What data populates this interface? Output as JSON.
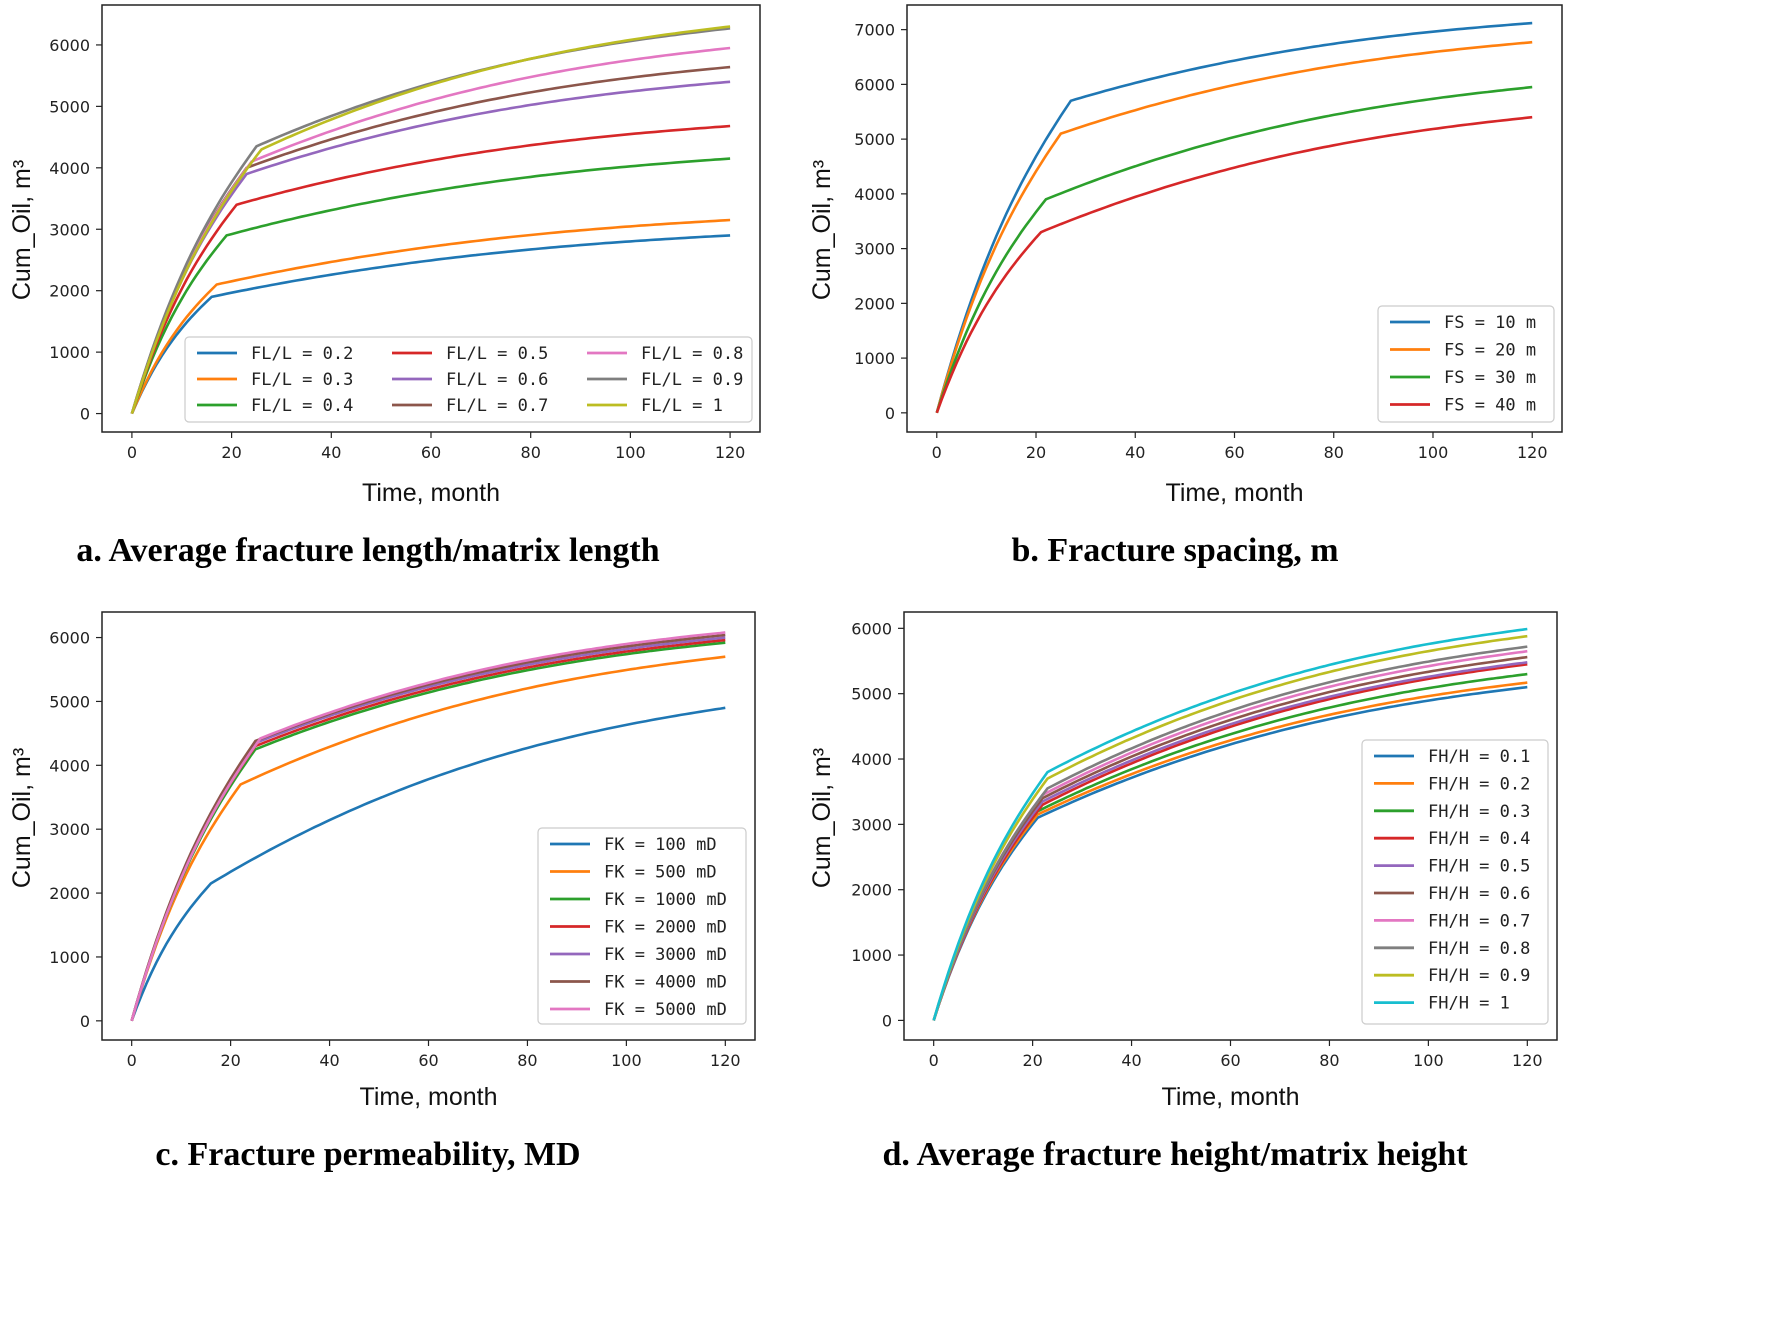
{
  "chart_data": [
    {
      "id": "a",
      "type": "line",
      "caption": "a. Average fracture length/matrix length",
      "xlabel": "Time, month",
      "ylabel": "Cum_Oil, m³",
      "xlim": [
        -6,
        126
      ],
      "ylim": [
        -300,
        6650
      ],
      "xticks": [
        0,
        20,
        40,
        60,
        80,
        100,
        120
      ],
      "yticks": [
        0,
        1000,
        2000,
        3000,
        4000,
        5000,
        6000
      ],
      "legend_position": "lower-right",
      "legend_columns": 3,
      "series": [
        {
          "name": "FL/L = 0.2",
          "color": "#1f77b4",
          "knee": 16,
          "knee_value": 1900,
          "final": 2900
        },
        {
          "name": "FL/L = 0.3",
          "color": "#ff7f0e",
          "knee": 17,
          "knee_value": 2100,
          "final": 3150
        },
        {
          "name": "FL/L = 0.4",
          "color": "#2ca02c",
          "knee": 19,
          "knee_value": 2900,
          "final": 4150
        },
        {
          "name": "FL/L = 0.5",
          "color": "#d62728",
          "knee": 21,
          "knee_value": 3400,
          "final": 4680
        },
        {
          "name": "FL/L = 0.6",
          "color": "#9467bd",
          "knee": 23,
          "knee_value": 3900,
          "final": 5400
        },
        {
          "name": "FL/L = 0.7",
          "color": "#8c564b",
          "knee": 23,
          "knee_value": 4000,
          "final": 5640
        },
        {
          "name": "FL/L = 0.8",
          "color": "#e377c2",
          "knee": 24,
          "knee_value": 4100,
          "final": 5950
        },
        {
          "name": "FL/L = 0.9",
          "color": "#7f7f7f",
          "knee": 25,
          "knee_value": 4350,
          "final": 6270
        },
        {
          "name": "FL/L = 1",
          "color": "#bcbd22",
          "knee": 26,
          "knee_value": 4300,
          "final": 6300
        }
      ]
    },
    {
      "id": "b",
      "type": "line",
      "caption": "b. Fracture spacing, m",
      "xlabel": "Time, month",
      "ylabel": "Cum_Oil, m³",
      "xlim": [
        -6,
        126
      ],
      "ylim": [
        -350,
        7450
      ],
      "xticks": [
        0,
        20,
        40,
        60,
        80,
        100,
        120
      ],
      "yticks": [
        0,
        1000,
        2000,
        3000,
        4000,
        5000,
        6000,
        7000
      ],
      "legend_position": "lower-right",
      "legend_columns": 1,
      "series": [
        {
          "name": "FS = 10 m",
          "color": "#1f77b4",
          "knee": 27,
          "knee_value": 5700,
          "final": 7120
        },
        {
          "name": "FS = 20 m",
          "color": "#ff7f0e",
          "knee": 25,
          "knee_value": 5100,
          "final": 6770
        },
        {
          "name": "FS = 30 m",
          "color": "#2ca02c",
          "knee": 22,
          "knee_value": 3900,
          "final": 5950
        },
        {
          "name": "FS = 40 m",
          "color": "#d62728",
          "knee": 21,
          "knee_value": 3300,
          "final": 5400
        }
      ]
    },
    {
      "id": "c",
      "type": "line",
      "caption": "c. Fracture permeability, MD",
      "xlabel": "Time, month",
      "ylabel": "Cum_Oil, m³",
      "xlim": [
        -6,
        126
      ],
      "ylim": [
        -300,
        6400
      ],
      "xticks": [
        0,
        20,
        40,
        60,
        80,
        100,
        120
      ],
      "yticks": [
        0,
        1000,
        2000,
        3000,
        4000,
        5000,
        6000
      ],
      "legend_position": "lower-right",
      "legend_columns": 1,
      "series": [
        {
          "name": "FK = 100 mD",
          "color": "#1f77b4",
          "knee": 16,
          "knee_value": 2150,
          "final": 4900
        },
        {
          "name": "FK = 500 mD",
          "color": "#ff7f0e",
          "knee": 22,
          "knee_value": 3700,
          "final": 5700
        },
        {
          "name": "FK = 1000 mD",
          "color": "#2ca02c",
          "knee": 25,
          "knee_value": 4250,
          "final": 5920
        },
        {
          "name": "FK = 2000 mD",
          "color": "#d62728",
          "knee": 25,
          "knee_value": 4300,
          "final": 5960
        },
        {
          "name": "FK = 3000 mD",
          "color": "#9467bd",
          "knee": 25,
          "knee_value": 4350,
          "final": 6000
        },
        {
          "name": "FK = 4000 mD",
          "color": "#8c564b",
          "knee": 25,
          "knee_value": 4380,
          "final": 6040
        },
        {
          "name": "FK = 5000 mD",
          "color": "#e377c2",
          "knee": 26,
          "knee_value": 4420,
          "final": 6080
        }
      ]
    },
    {
      "id": "d",
      "type": "line",
      "caption": "d. Average fracture height/matrix height",
      "xlabel": "Time, month",
      "ylabel": "Cum_Oil, m³",
      "xlim": [
        -6,
        126
      ],
      "ylim": [
        -300,
        6250
      ],
      "xticks": [
        0,
        20,
        40,
        60,
        80,
        100,
        120
      ],
      "yticks": [
        0,
        1000,
        2000,
        3000,
        4000,
        5000,
        6000
      ],
      "legend_position": "lower-right",
      "legend_columns": 1,
      "series": [
        {
          "name": "FH/H = 0.1",
          "color": "#1f77b4",
          "knee": 21,
          "knee_value": 3100,
          "final": 5100
        },
        {
          "name": "FH/H = 0.2",
          "color": "#ff7f0e",
          "knee": 21,
          "knee_value": 3150,
          "final": 5170
        },
        {
          "name": "FH/H = 0.3",
          "color": "#2ca02c",
          "knee": 21,
          "knee_value": 3200,
          "final": 5300
        },
        {
          "name": "FH/H = 0.4",
          "color": "#d62728",
          "knee": 22,
          "knee_value": 3300,
          "final": 5450
        },
        {
          "name": "FH/H = 0.5",
          "color": "#9467bd",
          "knee": 22,
          "knee_value": 3350,
          "final": 5480
        },
        {
          "name": "FH/H = 0.6",
          "color": "#8c564b",
          "knee": 22,
          "knee_value": 3400,
          "final": 5560
        },
        {
          "name": "FH/H = 0.7",
          "color": "#e377c2",
          "knee": 22,
          "knee_value": 3450,
          "final": 5650
        },
        {
          "name": "FH/H = 0.8",
          "color": "#7f7f7f",
          "knee": 23,
          "knee_value": 3550,
          "final": 5720
        },
        {
          "name": "FH/H = 0.9",
          "color": "#bcbd22",
          "knee": 23,
          "knee_value": 3700,
          "final": 5880
        },
        {
          "name": "FH/H = 1",
          "color": "#17becf",
          "knee": 23,
          "knee_value": 3800,
          "final": 5990
        }
      ]
    }
  ]
}
